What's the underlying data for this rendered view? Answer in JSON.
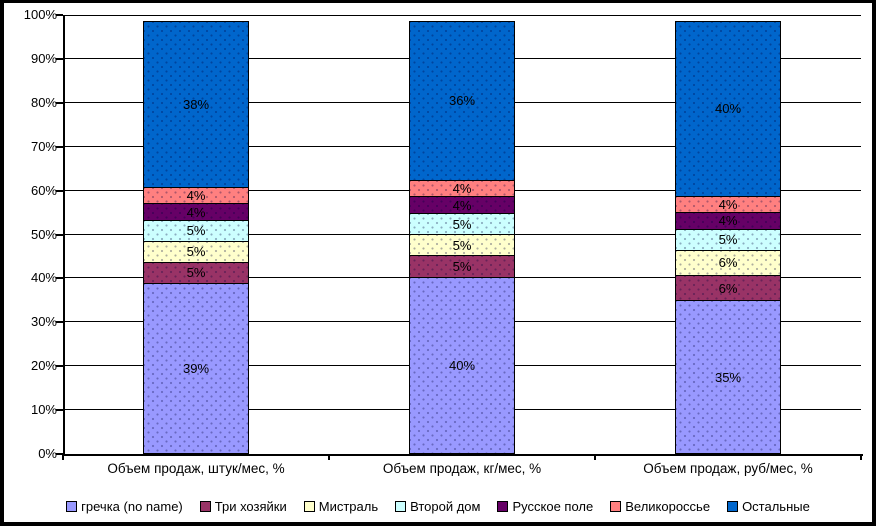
{
  "frame": {
    "border_color": "#000000",
    "background_color": "#FFFFFF"
  },
  "chart_data": {
    "type": "bar",
    "stacked": true,
    "stacked_mode": "percent",
    "title": "",
    "xlabel": "",
    "ylabel": "",
    "grid": true,
    "legend_position": "bottom",
    "categories": [
      "Объем продаж, штук/мес, %",
      "Объем продаж, кг/мес, %",
      "Объем продаж, руб/мес, %"
    ],
    "series": [
      {
        "name": "гречка (no name)",
        "color": "#9999FF",
        "values": [
          39,
          40,
          35
        ]
      },
      {
        "name": "Три хозяйки",
        "color": "#993366",
        "values": [
          5,
          5,
          6
        ]
      },
      {
        "name": "Мистраль",
        "color": "#FFFFCC",
        "values": [
          5,
          5,
          6
        ]
      },
      {
        "name": "Второй дом",
        "color": "#CCFFFF",
        "values": [
          5,
          5,
          5
        ]
      },
      {
        "name": "Русское поле",
        "color": "#660066",
        "values": [
          4,
          4,
          4
        ]
      },
      {
        "name": "Великороссье",
        "color": "#FF8080",
        "values": [
          4,
          4,
          4
        ]
      },
      {
        "name": "Остальные",
        "color": "#0066CC",
        "values": [
          38,
          36,
          40
        ]
      }
    ],
    "data_label_suffix": "%",
    "y_axis": {
      "min": 0,
      "max": 100,
      "step": 10,
      "tick_labels": [
        "0%",
        "10%",
        "20%",
        "30%",
        "40%",
        "50%",
        "60%",
        "70%",
        "80%",
        "90%",
        "100%"
      ]
    }
  }
}
